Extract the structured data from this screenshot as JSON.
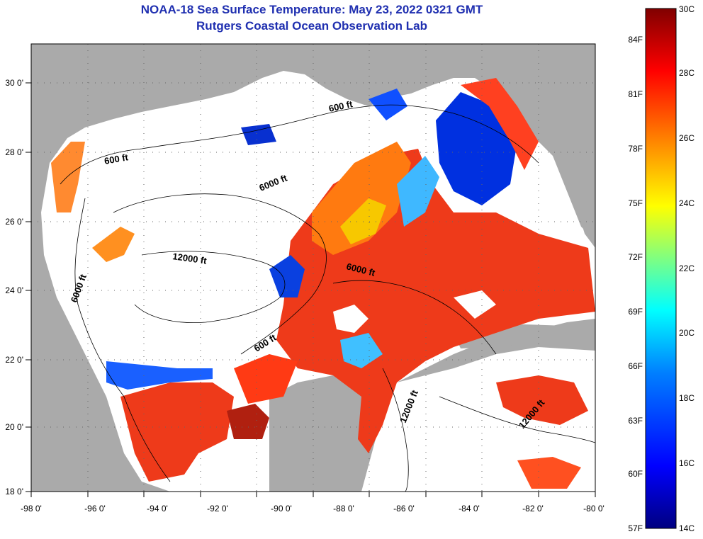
{
  "title": "NOAA-18 Sea Surface Temperature:  May 23, 2022 0321 GMT",
  "subtitle": "Rutgers Coastal Ocean Observation Lab",
  "x_ticks": [
    "-98 0'",
    "-96 0'",
    "-94 0'",
    "-92 0'",
    "-90 0'",
    "-88 0'",
    "-86 0'",
    "-84 0'",
    "-82 0'",
    "-80 0'"
  ],
  "y_ticks": [
    "30 0'",
    "28 0'",
    "26 0'",
    "24 0'",
    "22 0'",
    "20 0'",
    "18 0'"
  ],
  "contours": [
    {
      "label": "600 ft"
    },
    {
      "label": "600 ft"
    },
    {
      "label": "6000 ft"
    },
    {
      "label": "12000 ft"
    },
    {
      "label": "6000 ft"
    },
    {
      "label": "6000 ft"
    },
    {
      "label": "600 ft"
    },
    {
      "label": "12000 ft"
    },
    {
      "label": "12000 ft"
    }
  ],
  "colorbar": {
    "c_labels": [
      "30C",
      "28C",
      "26C",
      "24C",
      "22C",
      "20C",
      "18C",
      "16C",
      "14C"
    ],
    "f_labels": [
      "84F",
      "81F",
      "78F",
      "75F",
      "72F",
      "69F",
      "66F",
      "63F",
      "60F",
      "57F"
    ],
    "colors": [
      "#000080",
      "#0000ff",
      "#0080ff",
      "#00ffff",
      "#80ff80",
      "#ffff00",
      "#ff8000",
      "#ff0000",
      "#800000"
    ]
  }
}
